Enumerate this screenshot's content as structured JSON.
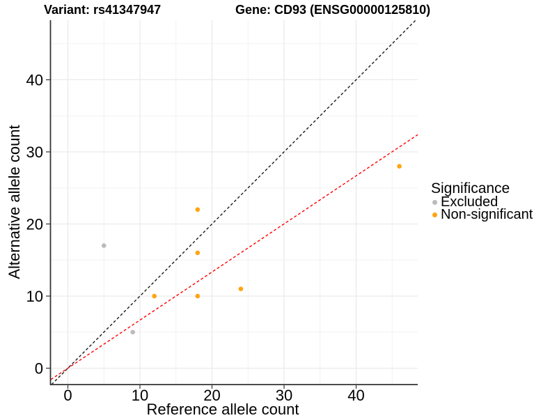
{
  "header": {
    "variant_title": "Variant: rs41347947",
    "gene_title": "Gene: CD93 (ENSG00000125810)"
  },
  "legend": {
    "title": "Significance",
    "items": [
      {
        "label": "Excluded",
        "color": "#bbbbbb"
      },
      {
        "label": "Non-significant",
        "color": "#ffa411"
      }
    ]
  },
  "chart_data": {
    "type": "scatter",
    "titles": {
      "variant": "Variant: rs41347947",
      "gene": "Gene: CD93 (ENSG00000125810)"
    },
    "xlabel": "Reference allele count",
    "ylabel": "Alternative allele count",
    "xlim": [
      -2.37,
      48.55
    ],
    "ylim": [
      -2.27,
      48.26
    ],
    "x_ticks": [
      0,
      10,
      20,
      30,
      40
    ],
    "y_ticks": [
      0,
      10,
      20,
      30,
      40
    ],
    "x_minor_ticks": [
      5,
      15,
      25,
      35,
      45
    ],
    "y_minor_ticks": [
      5,
      15,
      25,
      35,
      45
    ],
    "grid": true,
    "legend_position": "right",
    "series": [
      {
        "name": "Excluded",
        "color": "#bbbbbb",
        "points": [
          [
            5,
            17
          ],
          [
            9,
            5
          ]
        ]
      },
      {
        "name": "Non-significant",
        "color": "#ffa411",
        "points": [
          [
            12,
            10
          ],
          [
            18,
            22
          ],
          [
            18,
            16
          ],
          [
            18,
            10
          ],
          [
            24,
            11
          ],
          [
            46,
            28
          ]
        ]
      }
    ],
    "lines": [
      {
        "name": "identity",
        "color": "#1a1a1a",
        "style": "dashed",
        "slope": 1,
        "intercept": 0
      },
      {
        "name": "fit",
        "color": "#ff0000",
        "style": "dashed",
        "slope": 0.667,
        "intercept": 0
      }
    ],
    "colors": {
      "grid_major": "#e6e6e6",
      "grid_minor": "#f2f2f2",
      "axis_line": "#333333",
      "tick_mark": "#333333"
    }
  }
}
